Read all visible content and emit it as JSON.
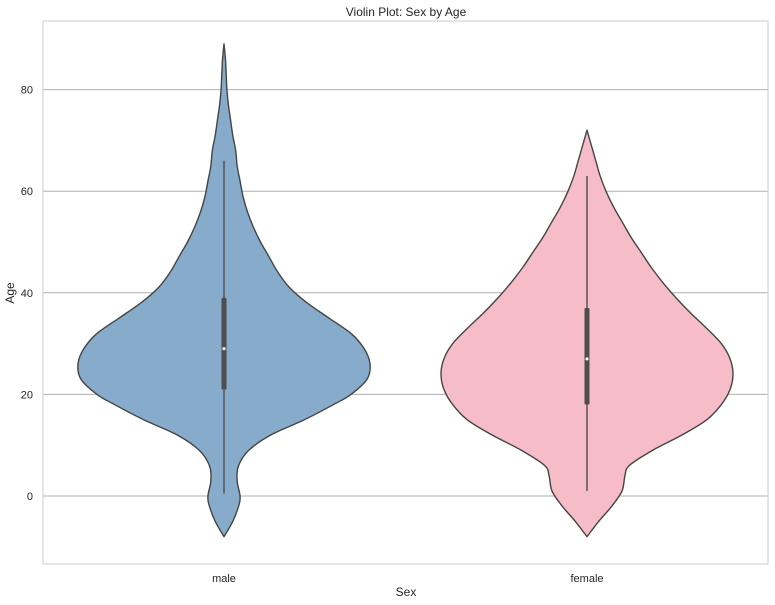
{
  "chart_data": {
    "type": "violin",
    "title": "Violin Plot: Sex by Age",
    "xlabel": "Sex",
    "ylabel": "Age",
    "ylim": [
      -13,
      93
    ],
    "yticks": [
      0,
      20,
      40,
      60,
      80
    ],
    "ytick_labels": [
      "0",
      "20",
      "40",
      "60",
      "80"
    ],
    "grid": true,
    "categories": [
      "male",
      "female"
    ],
    "violins": [
      {
        "name": "male",
        "color": "#87abcb",
        "min": 0.5,
        "q1": 21,
        "median": 29,
        "q3": 39,
        "max": 66,
        "kde_min": -8,
        "kde_max": 89,
        "density_profile": [
          [
            -8,
            0.0
          ],
          [
            -5,
            0.06
          ],
          [
            -2,
            0.1
          ],
          [
            0,
            0.11
          ],
          [
            3,
            0.09
          ],
          [
            6,
            0.1
          ],
          [
            9,
            0.17
          ],
          [
            12,
            0.32
          ],
          [
            15,
            0.55
          ],
          [
            18,
            0.75
          ],
          [
            20,
            0.87
          ],
          [
            23,
            0.98
          ],
          [
            26,
            1.0
          ],
          [
            29,
            0.96
          ],
          [
            32,
            0.87
          ],
          [
            35,
            0.72
          ],
          [
            38,
            0.57
          ],
          [
            41,
            0.45
          ],
          [
            44,
            0.37
          ],
          [
            47,
            0.31
          ],
          [
            50,
            0.25
          ],
          [
            53,
            0.2
          ],
          [
            56,
            0.16
          ],
          [
            59,
            0.13
          ],
          [
            62,
            0.11
          ],
          [
            65,
            0.09
          ],
          [
            68,
            0.08
          ],
          [
            71,
            0.06
          ],
          [
            74,
            0.045
          ],
          [
            77,
            0.03
          ],
          [
            80,
            0.02
          ],
          [
            83,
            0.015
          ],
          [
            86,
            0.01
          ],
          [
            89,
            0.0
          ]
        ]
      },
      {
        "name": "female",
        "color": "#f6bdc8",
        "min": 1,
        "q1": 18,
        "median": 27,
        "q3": 37,
        "max": 63,
        "kde_min": -8,
        "kde_max": 72,
        "density_profile": [
          [
            -8,
            0.0
          ],
          [
            -5,
            0.08
          ],
          [
            -2,
            0.17
          ],
          [
            1,
            0.24
          ],
          [
            4,
            0.26
          ],
          [
            6,
            0.29
          ],
          [
            9,
            0.45
          ],
          [
            12,
            0.65
          ],
          [
            15,
            0.82
          ],
          [
            18,
            0.92
          ],
          [
            21,
            0.98
          ],
          [
            24,
            1.0
          ],
          [
            27,
            0.98
          ],
          [
            30,
            0.92
          ],
          [
            33,
            0.82
          ],
          [
            36,
            0.71
          ],
          [
            39,
            0.61
          ],
          [
            42,
            0.52
          ],
          [
            45,
            0.44
          ],
          [
            48,
            0.37
          ],
          [
            51,
            0.3
          ],
          [
            54,
            0.24
          ],
          [
            57,
            0.18
          ],
          [
            60,
            0.13
          ],
          [
            63,
            0.09
          ],
          [
            66,
            0.06
          ],
          [
            69,
            0.03
          ],
          [
            72,
            0.0
          ]
        ]
      }
    ]
  }
}
